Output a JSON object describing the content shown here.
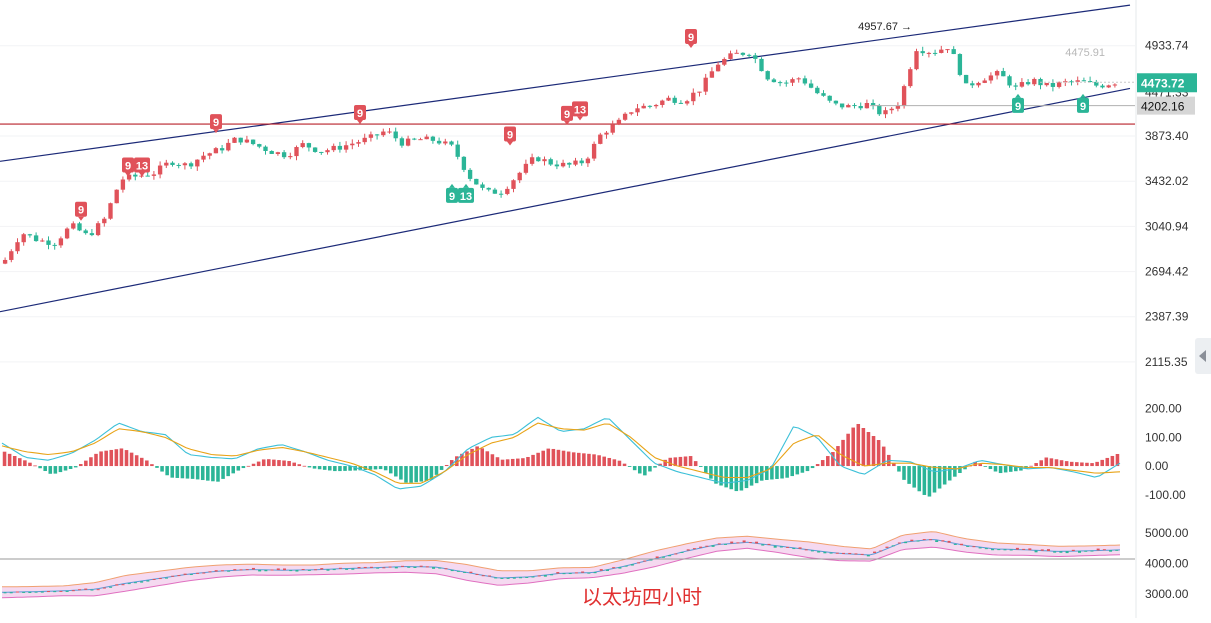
{
  "caption": "以太坊四小时",
  "colors": {
    "up": "#e0525a",
    "down": "#2bb597",
    "channel": "#1c2a78",
    "support": "#b8202a",
    "macd_dif": "#3cc0d8",
    "macd_dea": "#e8a317",
    "boll_upper": "#f0a070",
    "boll_lower": "#e070c0",
    "boll_fill": "#f3d0ec",
    "price_badge": "#2bb597",
    "level_badge": "#d6d6d6",
    "caption": "#e03030"
  },
  "chart_data": [
    {
      "type": "candlestick",
      "title": "",
      "y_ticks": [
        "4933.74",
        "3873.40",
        "3432.02",
        "3040.94",
        "2694.42",
        "2387.39",
        "2115.35"
      ],
      "scale": "log",
      "ylim": [
        1900,
        5400
      ],
      "price_path": [
        2780,
        2990,
        2930,
        2910,
        3050,
        2960,
        3100,
        3450,
        3480,
        3510,
        3620,
        3580,
        3680,
        3740,
        3850,
        3790,
        3720,
        3680,
        3790,
        3720,
        3750,
        3800,
        3850,
        3930,
        3800,
        3840,
        3830,
        3760,
        3480,
        3330,
        3340,
        3500,
        3660,
        3600,
        3580,
        3620,
        3900,
        4010,
        4180,
        4200,
        4280,
        4260,
        4400,
        4700,
        4820,
        4850,
        4540,
        4460,
        4530,
        4350,
        4210,
        4190,
        4220,
        4100,
        4240,
        4900,
        4850,
        4930,
        4420,
        4520,
        4580,
        4400,
        4500,
        4420,
        4470,
        4480,
        4430,
        4473.72
      ],
      "current_price": "4473.72",
      "price_behind_badge": "4471.33",
      "faded_price": "4475.91",
      "support_level": "4202.16",
      "high_marker": "4957.67 →",
      "horizontal_line": 4000,
      "channel_upper": [
        [
          0,
          3620
        ],
        [
          1130,
          5500
        ]
      ],
      "channel_lower": [
        [
          0,
          2420
        ],
        [
          1130,
          4400
        ]
      ],
      "td_markers": [
        {
          "text": "9",
          "kind": "sell",
          "x": 81,
          "price": 3180
        },
        {
          "text": "9",
          "kind": "sell",
          "x": 128,
          "price": 3580
        },
        {
          "text": "13",
          "kind": "sell",
          "x": 142,
          "price": 3580
        },
        {
          "text": "9",
          "kind": "sell",
          "x": 216,
          "price": 4020
        },
        {
          "text": "9",
          "kind": "sell",
          "x": 360,
          "price": 4120
        },
        {
          "text": "9",
          "kind": "buy",
          "x": 452,
          "price": 3300
        },
        {
          "text": "13",
          "kind": "buy",
          "x": 466,
          "price": 3300
        },
        {
          "text": "9",
          "kind": "sell",
          "x": 510,
          "price": 3890
        },
        {
          "text": "9",
          "kind": "sell",
          "x": 567,
          "price": 4110
        },
        {
          "text": "13",
          "kind": "sell",
          "x": 580,
          "price": 4160
        },
        {
          "text": "9",
          "kind": "sell",
          "x": 691,
          "price": 5050
        },
        {
          "text": "9",
          "kind": "buy",
          "x": 1018,
          "price": 4200
        },
        {
          "text": "9",
          "kind": "buy",
          "x": 1083,
          "price": 4200
        }
      ]
    },
    {
      "type": "macd",
      "y_ticks": [
        "200.00",
        "100.00",
        "0.00",
        "-100.00"
      ],
      "ylim": [
        -160,
        230
      ],
      "hist_path": [
        50,
        15,
        -30,
        -5,
        50,
        62,
        20,
        -40,
        -45,
        -55,
        -10,
        25,
        18,
        -8,
        -18,
        -15,
        -10,
        -60,
        -50,
        30,
        70,
        22,
        28,
        62,
        48,
        40,
        18,
        -35,
        28,
        35,
        -60,
        -90,
        -50,
        -42,
        -15,
        50,
        150,
        85,
        -50,
        -110,
        -45,
        15,
        -25,
        -15,
        30,
        15,
        10,
        42
      ],
      "dif_path": [
        80,
        30,
        20,
        45,
        90,
        150,
        120,
        110,
        40,
        30,
        25,
        60,
        75,
        50,
        20,
        0,
        -30,
        -80,
        -70,
        -20,
        60,
        100,
        110,
        170,
        120,
        130,
        170,
        90,
        10,
        -20,
        -40,
        -60,
        -50,
        -10,
        140,
        100,
        0,
        -30,
        20,
        15,
        -20,
        -10,
        20,
        5,
        -10,
        -5,
        -20,
        -40,
        10
      ],
      "dea_path": [
        70,
        50,
        40,
        50,
        80,
        130,
        120,
        100,
        60,
        40,
        35,
        55,
        65,
        50,
        30,
        10,
        -20,
        -60,
        -60,
        -20,
        40,
        80,
        100,
        150,
        130,
        125,
        150,
        100,
        30,
        0,
        -20,
        -40,
        -40,
        -10,
        80,
        110,
        40,
        0,
        10,
        10,
        -5,
        -10,
        10,
        5,
        -5,
        -5,
        -15,
        -25,
        -20
      ]
    },
    {
      "type": "bollinger",
      "y_ticks": [
        "5000.00",
        "4000.00",
        "3000.00"
      ],
      "ylim": [
        2400,
        5600
      ],
      "mid_path": [
        3050,
        3070,
        3100,
        3150,
        3350,
        3500,
        3650,
        3750,
        3800,
        3780,
        3790,
        3830,
        3860,
        3900,
        3880,
        3700,
        3520,
        3560,
        3680,
        3700,
        3900,
        4150,
        4400,
        4620,
        4700,
        4580,
        4450,
        4330,
        4280,
        4700,
        4800,
        4600,
        4480,
        4450,
        4400,
        4420,
        4450
      ],
      "band_width": [
        180,
        170,
        160,
        220,
        260,
        240,
        220,
        200,
        180,
        170,
        160,
        180,
        170,
        190,
        220,
        260,
        240,
        200,
        180,
        170,
        220,
        260,
        240,
        220,
        200,
        220,
        260,
        240,
        200,
        240,
        260,
        220,
        200,
        180,
        170,
        160,
        160
      ],
      "horizontal_line": 4150
    }
  ]
}
